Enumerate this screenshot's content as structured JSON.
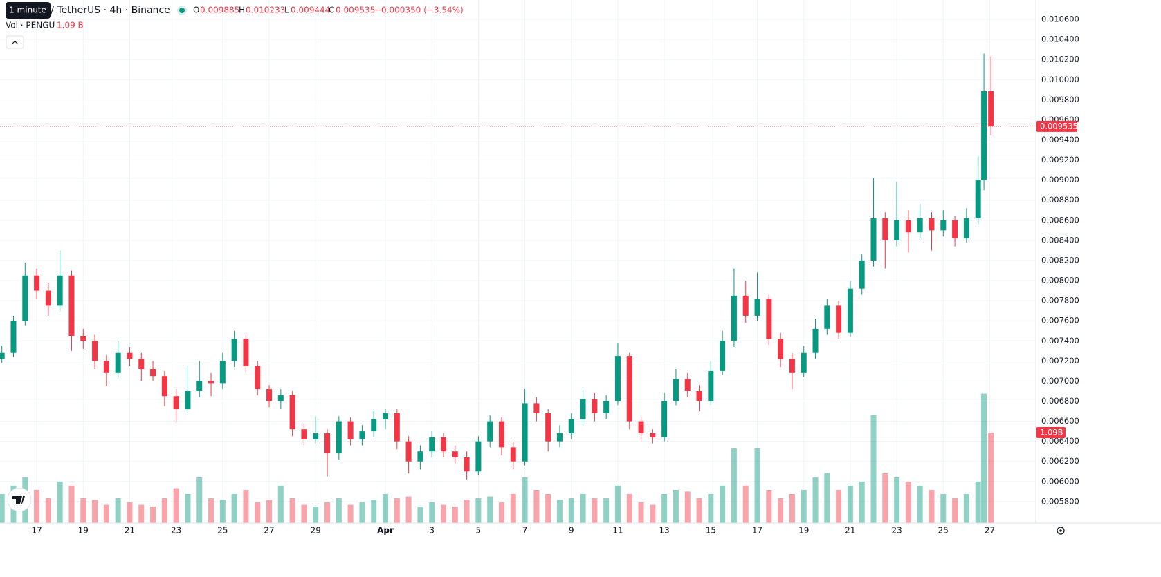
{
  "chart_data": {
    "type": "candlestick",
    "header": {
      "symbol": "PENGU / TetherUS · 4h · Binance",
      "tooltip": "1 minute",
      "open_label": "O",
      "open": "0.009885",
      "high_label": "H",
      "high": "0.010233",
      "low_label": "L",
      "low": "0.009444",
      "close_label": "C",
      "close": "0.009535",
      "change": "−0.000350 (−3.54%)",
      "volume_label": "Vol · PENGU",
      "volume": "1.09 B",
      "volume_tag": "1.09B"
    },
    "up_color": "#089981",
    "down_color": "#f23645",
    "grid": true,
    "xlim": [
      15.42,
      59.98
    ],
    "ylim": [
      0.005586,
      0.010793
    ],
    "volume_lim": [
      0,
      6.3
    ],
    "last_close": 0.009535,
    "last_volume": 1.09,
    "xticks": [
      17,
      19,
      21,
      23,
      25,
      27,
      29,
      {
        "value": 32,
        "label": "Apr"
      },
      {
        "value": 34,
        "label": "3"
      },
      {
        "value": 36,
        "label": "5"
      },
      {
        "value": 38,
        "label": "7"
      },
      {
        "value": 40,
        "label": "9"
      },
      {
        "value": 42,
        "label": "11"
      },
      {
        "value": 44,
        "label": "13"
      },
      {
        "value": 46,
        "label": "15"
      },
      {
        "value": 48,
        "label": "17"
      },
      {
        "value": 50,
        "label": "19"
      },
      {
        "value": 52,
        "label": "21"
      },
      {
        "value": 54,
        "label": "23"
      },
      {
        "value": 56,
        "label": "25"
      },
      {
        "value": 58,
        "label": "27"
      }
    ],
    "yticks": [
      {
        "value": 0.0058,
        "label": "0.005800"
      },
      {
        "value": 0.006,
        "label": "0.006000"
      },
      {
        "value": 0.0062,
        "label": "0.006200"
      },
      {
        "value": 0.0064,
        "label": "0.006400"
      },
      {
        "value": 0.0066,
        "label": "0.006600"
      },
      {
        "value": 0.0068,
        "label": "0.006800"
      },
      {
        "value": 0.007,
        "label": "0.007000"
      },
      {
        "value": 0.0072,
        "label": "0.007200"
      },
      {
        "value": 0.0074,
        "label": "0.007400"
      },
      {
        "value": 0.0076,
        "label": "0.007600"
      },
      {
        "value": 0.0078,
        "label": "0.007800"
      },
      {
        "value": 0.008,
        "label": "0.008000"
      },
      {
        "value": 0.0082,
        "label": "0.008200"
      },
      {
        "value": 0.0084,
        "label": "0.008400"
      },
      {
        "value": 0.0086,
        "label": "0.008600"
      },
      {
        "value": 0.0088,
        "label": "0.008800"
      },
      {
        "value": 0.009,
        "label": "0.009000"
      },
      {
        "value": 0.0092,
        "label": "0.009200"
      },
      {
        "value": 0.0094,
        "label": "0.009400"
      },
      {
        "value": 0.0096,
        "label": "0.009600"
      },
      {
        "value": 0.0098,
        "label": "0.009800"
      },
      {
        "value": 0.01,
        "label": "0.010000"
      },
      {
        "value": 0.0102,
        "label": "0.010200"
      },
      {
        "value": 0.0104,
        "label": "0.010400"
      },
      {
        "value": 0.0106,
        "label": "0.010600"
      }
    ],
    "x": [
      15.5,
      16,
      16.5,
      17,
      17.5,
      18,
      18.5,
      19,
      19.5,
      20,
      20.5,
      21,
      21.5,
      22,
      22.5,
      23,
      23.5,
      24,
      24.5,
      25,
      25.5,
      26,
      26.5,
      27,
      27.5,
      28,
      28.5,
      29,
      29.5,
      30,
      30.5,
      31,
      31.5,
      32,
      32.5,
      33,
      33.5,
      34,
      34.5,
      35,
      35.5,
      36,
      36.5,
      37,
      37.5,
      38,
      38.5,
      39,
      39.5,
      40,
      40.5,
      41,
      41.5,
      42,
      42.5,
      43,
      43.5,
      44,
      44.5,
      45,
      45.5,
      46,
      46.5,
      47,
      47.5,
      48,
      48.5,
      49,
      49.5,
      50,
      50.5,
      51,
      51.5,
      52,
      52.5,
      53,
      53.5,
      54,
      54.5,
      55,
      55.5,
      56,
      56.5,
      57,
      57.5,
      57.75,
      58.05
    ],
    "open": [
      0.00722,
      0.00728,
      0.0076,
      0.00805,
      0.0079,
      0.00775,
      0.00805,
      0.00745,
      0.0074,
      0.0072,
      0.00708,
      0.00728,
      0.00722,
      0.00712,
      0.00705,
      0.00685,
      0.00672,
      0.0069,
      0.007,
      0.00698,
      0.0072,
      0.00742,
      0.00715,
      0.00692,
      0.0068,
      0.00686,
      0.00652,
      0.00642,
      0.00648,
      0.00628,
      0.0066,
      0.00642,
      0.0065,
      0.00662,
      0.00668,
      0.0064,
      0.0062,
      0.0063,
      0.00644,
      0.0063,
      0.00624,
      0.0061,
      0.0064,
      0.0066,
      0.00634,
      0.0062,
      0.00678,
      0.00668,
      0.0064,
      0.00648,
      0.00662,
      0.00682,
      0.00668,
      0.0068,
      0.00725,
      0.0066,
      0.00648,
      0.00644,
      0.0068,
      0.00702,
      0.0069,
      0.0068,
      0.0071,
      0.0074,
      0.00785,
      0.00765,
      0.00782,
      0.00742,
      0.00722,
      0.00708,
      0.00728,
      0.00752,
      0.00775,
      0.00748,
      0.00792,
      0.0082,
      0.00862,
      0.0084,
      0.0086,
      0.00848,
      0.00862,
      0.0085,
      0.0086,
      0.00842,
      0.00862,
      0.009,
      0.009885
    ],
    "high": [
      0.00735,
      0.00765,
      0.00818,
      0.00812,
      0.00798,
      0.0083,
      0.0081,
      0.00752,
      0.00746,
      0.00726,
      0.0074,
      0.00734,
      0.00728,
      0.0072,
      0.0071,
      0.00692,
      0.00715,
      0.0072,
      0.00708,
      0.00728,
      0.0075,
      0.00746,
      0.0072,
      0.00696,
      0.00692,
      0.0069,
      0.00658,
      0.00665,
      0.00652,
      0.00665,
      0.00664,
      0.00656,
      0.0067,
      0.00672,
      0.00672,
      0.00645,
      0.00636,
      0.0065,
      0.00648,
      0.00636,
      0.0063,
      0.00645,
      0.00666,
      0.00664,
      0.0064,
      0.00692,
      0.00684,
      0.00672,
      0.00656,
      0.00668,
      0.0069,
      0.00688,
      0.00686,
      0.00738,
      0.00728,
      0.00664,
      0.00652,
      0.00688,
      0.00712,
      0.00708,
      0.00696,
      0.0072,
      0.0075,
      0.00812,
      0.008,
      0.00808,
      0.00786,
      0.00748,
      0.00728,
      0.00735,
      0.00762,
      0.00782,
      0.0078,
      0.008,
      0.00826,
      0.00902,
      0.00868,
      0.00898,
      0.0087,
      0.00876,
      0.00868,
      0.0087,
      0.00864,
      0.00872,
      0.00924,
      0.01026,
      0.010233
    ],
    "low": [
      0.00718,
      0.00724,
      0.00755,
      0.00782,
      0.00765,
      0.0077,
      0.0073,
      0.00732,
      0.00712,
      0.00695,
      0.00704,
      0.00715,
      0.007,
      0.007,
      0.00675,
      0.0066,
      0.00668,
      0.00684,
      0.00685,
      0.00692,
      0.00714,
      0.00708,
      0.00686,
      0.00674,
      0.00672,
      0.00645,
      0.00636,
      0.00638,
      0.00605,
      0.00622,
      0.00636,
      0.00636,
      0.00644,
      0.00652,
      0.00632,
      0.00608,
      0.00612,
      0.00624,
      0.00624,
      0.00618,
      0.00602,
      0.00606,
      0.00634,
      0.00626,
      0.00612,
      0.00616,
      0.0066,
      0.0063,
      0.00634,
      0.00642,
      0.00656,
      0.0066,
      0.00662,
      0.00676,
      0.00652,
      0.0064,
      0.00638,
      0.0064,
      0.00676,
      0.00684,
      0.0067,
      0.00676,
      0.00706,
      0.00734,
      0.00758,
      0.0076,
      0.00736,
      0.00714,
      0.00692,
      0.00704,
      0.00722,
      0.00746,
      0.00742,
      0.00744,
      0.00786,
      0.00814,
      0.00812,
      0.00834,
      0.00828,
      0.00842,
      0.0083,
      0.00844,
      0.00834,
      0.00838,
      0.00856,
      0.0089,
      0.009444
    ],
    "close": [
      0.00728,
      0.0076,
      0.00805,
      0.0079,
      0.00775,
      0.00805,
      0.00745,
      0.0074,
      0.0072,
      0.00708,
      0.00728,
      0.00722,
      0.00712,
      0.00705,
      0.00685,
      0.00672,
      0.0069,
      0.007,
      0.00698,
      0.0072,
      0.00742,
      0.00715,
      0.00692,
      0.0068,
      0.00686,
      0.00652,
      0.00642,
      0.00648,
      0.00628,
      0.0066,
      0.00642,
      0.0065,
      0.00662,
      0.00668,
      0.0064,
      0.0062,
      0.0063,
      0.00644,
      0.0063,
      0.00624,
      0.0061,
      0.0064,
      0.0066,
      0.00634,
      0.0062,
      0.00678,
      0.00668,
      0.0064,
      0.00648,
      0.00662,
      0.00682,
      0.00668,
      0.0068,
      0.00725,
      0.0066,
      0.00648,
      0.00644,
      0.0068,
      0.00702,
      0.0069,
      0.0068,
      0.0071,
      0.0074,
      0.00785,
      0.00765,
      0.00782,
      0.00742,
      0.00722,
      0.00708,
      0.00728,
      0.00752,
      0.00775,
      0.00748,
      0.00792,
      0.0082,
      0.00862,
      0.0084,
      0.0086,
      0.00848,
      0.00862,
      0.0085,
      0.0086,
      0.00842,
      0.00862,
      0.009,
      0.009885,
      0.009535
    ],
    "volume": [
      0.35,
      0.45,
      0.55,
      0.4,
      0.3,
      0.5,
      0.45,
      0.3,
      0.28,
      0.22,
      0.3,
      0.25,
      0.22,
      0.2,
      0.3,
      0.42,
      0.35,
      0.55,
      0.3,
      0.28,
      0.35,
      0.4,
      0.25,
      0.28,
      0.45,
      0.3,
      0.22,
      0.2,
      0.25,
      0.3,
      0.22,
      0.25,
      0.28,
      0.35,
      0.3,
      0.32,
      0.2,
      0.25,
      0.22,
      0.2,
      0.28,
      0.3,
      0.32,
      0.25,
      0.35,
      0.55,
      0.4,
      0.35,
      0.28,
      0.3,
      0.35,
      0.3,
      0.3,
      0.45,
      0.35,
      0.25,
      0.22,
      0.35,
      0.4,
      0.38,
      0.3,
      0.35,
      0.45,
      0.9,
      0.45,
      0.9,
      0.4,
      0.3,
      0.35,
      0.4,
      0.55,
      0.6,
      0.4,
      0.45,
      0.5,
      1.3,
      0.6,
      0.55,
      0.5,
      0.45,
      0.4,
      0.35,
      0.3,
      0.35,
      0.5,
      1.56,
      1.09
    ]
  }
}
